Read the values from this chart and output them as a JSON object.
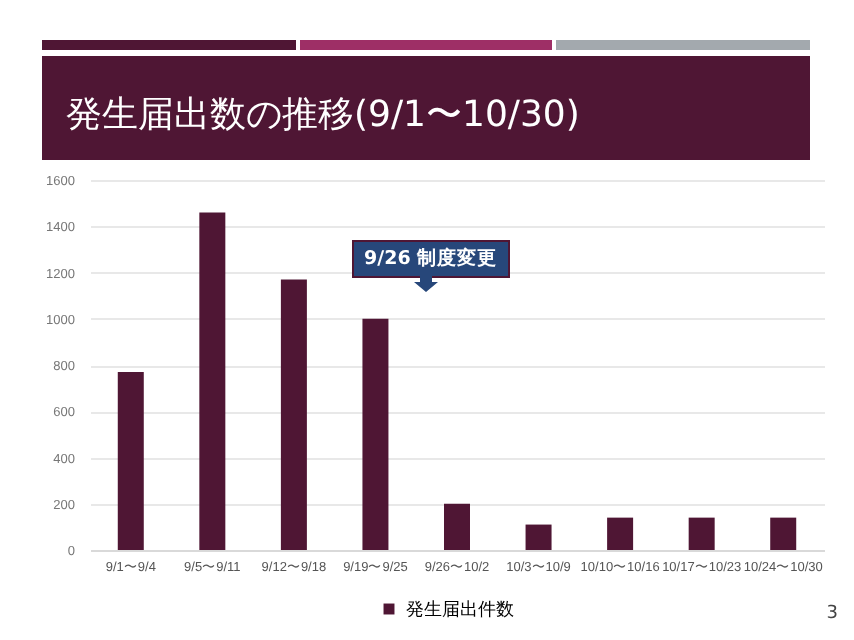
{
  "chart_data": {
    "type": "bar",
    "title": "発生届出数の推移(9/1〜10/30)",
    "categories": [
      "9/1〜9/4",
      "9/5〜9/11",
      "9/12〜9/18",
      "9/19〜9/25",
      "9/26〜10/2",
      "10/3〜10/9",
      "10/10〜10/16",
      "10/17〜10/23",
      "10/24〜10/30"
    ],
    "series": [
      {
        "name": "発生届出件数",
        "color": "#4f1634",
        "values": [
          770,
          1460,
          1170,
          1000,
          200,
          110,
          140,
          140,
          140
        ]
      }
    ],
    "ylim": [
      0,
      1600
    ],
    "yticks": [
      0,
      200,
      400,
      600,
      800,
      1000,
      1200,
      1400,
      1600
    ],
    "grid": "y",
    "legend": "bottom",
    "annotations": [
      "9/26 制度変更",
      "3"
    ]
  }
}
